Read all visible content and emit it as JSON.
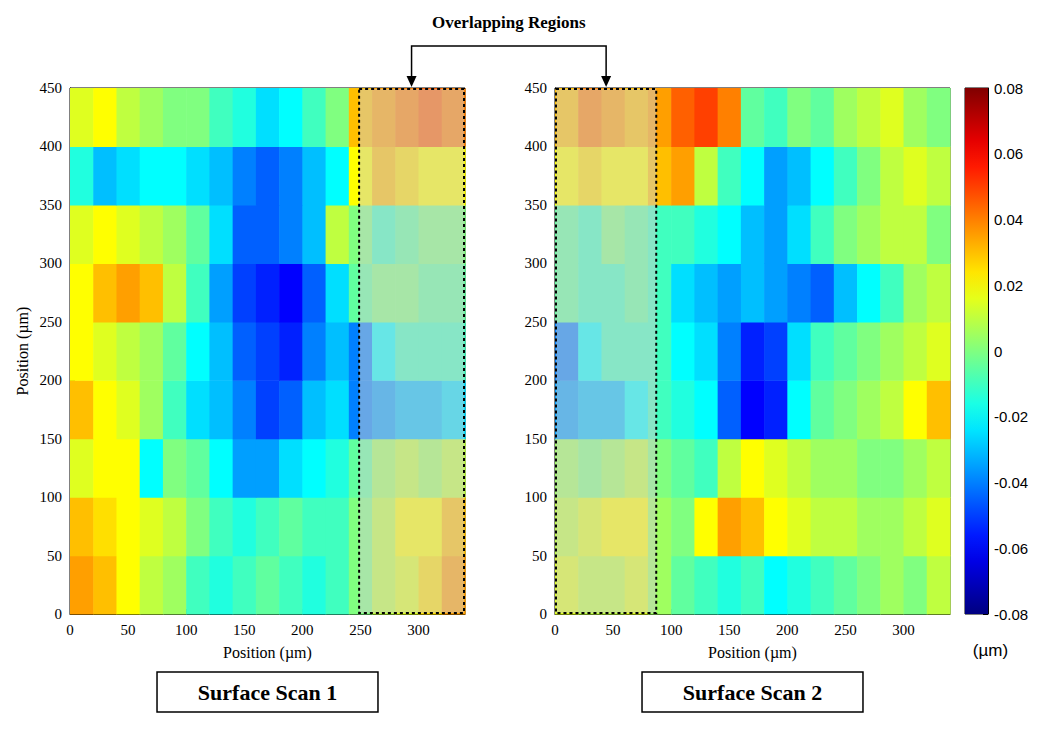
{
  "annotation": "Overlapping Regions",
  "colorbar": {
    "range": [
      -0.08,
      0.08
    ],
    "ticks": [
      -0.08,
      -0.06,
      -0.04,
      -0.02,
      0,
      0.02,
      0.04,
      0.06,
      0.08
    ],
    "label": "(µm)"
  },
  "chart_data": [
    {
      "type": "heatmap",
      "title": "Surface Scan 1",
      "xlabel": "Position (µm)",
      "ylabel": "Position (µm)",
      "xlim": [
        0,
        340
      ],
      "ylim": [
        0,
        450
      ],
      "xticks": [
        0,
        50,
        100,
        150,
        200,
        250,
        300
      ],
      "yticks": [
        0,
        50,
        100,
        150,
        200,
        250,
        300,
        350,
        400,
        450
      ],
      "x": [
        10,
        30,
        50,
        70,
        90,
        110,
        130,
        150,
        170,
        190,
        210,
        230,
        250,
        270,
        290,
        310,
        330
      ],
      "y": [
        25,
        75,
        125,
        175,
        225,
        275,
        325,
        375,
        425
      ],
      "cells": [
        [
          0.035,
          0.03,
          0.02,
          0.01,
          0.005,
          -0.01,
          -0.015,
          -0.01,
          -0.005,
          -0.01,
          -0.015,
          -0.01,
          0.0,
          0.01,
          0.015,
          0.025,
          0.035
        ],
        [
          0.03,
          0.025,
          0.02,
          0.015,
          0.01,
          0.0,
          -0.01,
          -0.015,
          -0.01,
          -0.005,
          -0.01,
          -0.01,
          0.0,
          0.01,
          0.02,
          0.02,
          0.03
        ],
        [
          0.015,
          0.02,
          0.02,
          -0.02,
          0.0,
          -0.005,
          -0.02,
          -0.035,
          -0.035,
          -0.025,
          -0.02,
          -0.015,
          -0.005,
          0.005,
          0.01,
          0.005,
          0.01
        ],
        [
          0.03,
          0.02,
          0.015,
          0.005,
          -0.01,
          -0.025,
          -0.03,
          -0.04,
          -0.05,
          -0.045,
          -0.03,
          -0.025,
          -0.04,
          -0.035,
          -0.03,
          -0.03,
          -0.025
        ],
        [
          0.02,
          0.015,
          0.01,
          0.005,
          -0.005,
          -0.02,
          -0.03,
          -0.045,
          -0.05,
          -0.055,
          -0.04,
          -0.03,
          -0.04,
          -0.02,
          -0.01,
          -0.01,
          -0.01
        ],
        [
          0.02,
          0.03,
          0.035,
          0.03,
          0.01,
          -0.01,
          -0.035,
          -0.05,
          -0.055,
          -0.06,
          -0.045,
          -0.025,
          -0.005,
          0.0,
          0.0,
          -0.005,
          -0.005
        ],
        [
          0.015,
          0.02,
          0.015,
          0.01,
          0.005,
          -0.005,
          -0.025,
          -0.045,
          -0.045,
          -0.04,
          -0.03,
          0.01,
          0.0,
          -0.01,
          -0.005,
          0.0,
          0.0
        ],
        [
          -0.015,
          -0.03,
          -0.025,
          -0.02,
          -0.02,
          -0.025,
          -0.03,
          -0.04,
          -0.045,
          -0.04,
          -0.03,
          -0.02,
          0.02,
          0.03,
          0.025,
          0.02,
          0.02
        ],
        [
          0.015,
          0.02,
          0.01,
          0.005,
          0.0,
          0.0,
          -0.01,
          -0.015,
          -0.025,
          -0.02,
          -0.01,
          0.0,
          0.03,
          0.035,
          0.04,
          0.045,
          0.04
        ]
      ],
      "overlap_x": [
        248,
        340
      ]
    },
    {
      "type": "heatmap",
      "title": "Surface Scan 2",
      "xlabel": "Position (µm)",
      "xlim": [
        0,
        340
      ],
      "ylim": [
        0,
        450
      ],
      "xticks": [
        0,
        50,
        100,
        150,
        200,
        250,
        300
      ],
      "yticks": [
        0,
        50,
        100,
        150,
        200,
        250,
        300,
        350,
        400,
        450
      ],
      "x": [
        10,
        30,
        50,
        70,
        90,
        110,
        130,
        150,
        170,
        190,
        210,
        230,
        250,
        270,
        290,
        310,
        330
      ],
      "y": [
        25,
        75,
        125,
        175,
        225,
        275,
        325,
        375,
        425
      ],
      "cells": [
        [
          0.015,
          0.01,
          0.01,
          0.015,
          0.005,
          -0.005,
          -0.01,
          -0.015,
          -0.01,
          -0.02,
          -0.015,
          -0.01,
          -0.005,
          0.0,
          0.005,
          0.0,
          0.01
        ],
        [
          0.01,
          0.015,
          0.02,
          0.02,
          0.005,
          0.0,
          0.02,
          0.035,
          0.03,
          0.02,
          0.015,
          0.01,
          0.01,
          0.005,
          0.005,
          0.01,
          0.015
        ],
        [
          0.005,
          0.0,
          0.005,
          0.01,
          0.0,
          -0.005,
          -0.01,
          0.01,
          0.02,
          0.015,
          0.01,
          0.005,
          0.005,
          0.0,
          0.0,
          0.005,
          0.01
        ],
        [
          -0.035,
          -0.03,
          -0.03,
          -0.02,
          -0.01,
          -0.015,
          -0.02,
          -0.045,
          -0.06,
          -0.055,
          -0.02,
          -0.005,
          0.0,
          0.005,
          0.01,
          0.02,
          0.03
        ],
        [
          -0.04,
          -0.02,
          -0.01,
          -0.01,
          -0.01,
          -0.02,
          -0.025,
          -0.04,
          -0.055,
          -0.05,
          -0.025,
          -0.01,
          -0.005,
          0.0,
          0.005,
          0.01,
          0.015
        ],
        [
          -0.005,
          -0.01,
          -0.01,
          -0.005,
          -0.01,
          -0.025,
          -0.03,
          -0.035,
          -0.03,
          -0.035,
          -0.04,
          -0.045,
          -0.03,
          -0.02,
          -0.01,
          0.005,
          0.01
        ],
        [
          -0.005,
          -0.01,
          0.0,
          -0.005,
          -0.01,
          -0.01,
          -0.015,
          -0.02,
          -0.03,
          -0.035,
          -0.025,
          -0.01,
          0.0,
          0.005,
          0.01,
          0.01,
          0.0
        ],
        [
          0.02,
          0.025,
          0.02,
          0.02,
          0.03,
          0.035,
          0.01,
          -0.01,
          -0.02,
          -0.035,
          -0.03,
          -0.02,
          -0.01,
          0.0,
          0.01,
          0.015,
          0.01
        ],
        [
          0.03,
          0.04,
          0.035,
          0.03,
          0.035,
          0.045,
          0.05,
          0.04,
          -0.005,
          -0.01,
          0.0,
          -0.005,
          0.005,
          0.01,
          0.015,
          0.005,
          0.0
        ]
      ],
      "overlap_x": [
        0,
        88
      ]
    }
  ]
}
